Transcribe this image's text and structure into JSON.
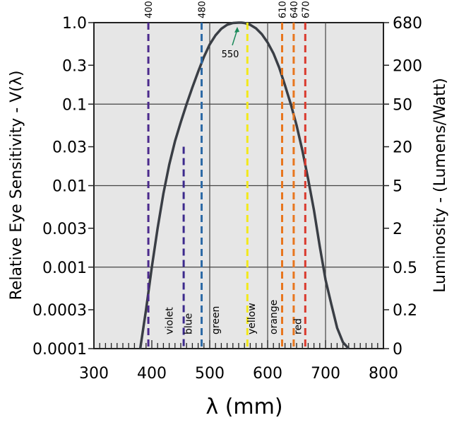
{
  "chart_data": {
    "type": "line",
    "xlabel": "λ (mm)",
    "ylabel_left": "Relative Eye Sensitivity - V(λ)",
    "ylabel_right": "Luminosity - (Lumens/Watt)",
    "xlim": [
      300,
      800
    ],
    "ylim": [
      0.0001,
      1.0
    ],
    "y_scale": "log",
    "grid": true,
    "x_ticks": [
      "300",
      "400",
      "500",
      "600",
      "700",
      "800"
    ],
    "y_ticks_left": [
      {
        "label": "1.0",
        "value": 1.0
      },
      {
        "label": "0.3",
        "value": 0.3
      },
      {
        "label": "0.1",
        "value": 0.1
      },
      {
        "label": "0.03",
        "value": 0.03
      },
      {
        "label": "0.01",
        "value": 0.01
      },
      {
        "label": "0.003",
        "value": 0.003
      },
      {
        "label": "0.001",
        "value": 0.001
      },
      {
        "label": "0.0003",
        "value": 0.0003
      },
      {
        "label": "0.0001",
        "value": 0.0001
      }
    ],
    "y_ticks_right": [
      {
        "label": "680",
        "value": 1.0
      },
      {
        "label": "200",
        "value": 0.3
      },
      {
        "label": "50",
        "value": 0.1
      },
      {
        "label": "20",
        "value": 0.03
      },
      {
        "label": "5",
        "value": 0.01
      },
      {
        "label": "2",
        "value": 0.003
      },
      {
        "label": "0.5",
        "value": 0.001
      },
      {
        "label": "0.2",
        "value": 0.0003
      },
      {
        "label": "0",
        "value": 0.0001
      }
    ],
    "curve": {
      "x": [
        380,
        390,
        400,
        410,
        420,
        430,
        440,
        450,
        460,
        470,
        480,
        490,
        500,
        510,
        520,
        530,
        540,
        550,
        555,
        560,
        570,
        580,
        590,
        600,
        610,
        620,
        630,
        640,
        650,
        660,
        670,
        680,
        690,
        700,
        710,
        720,
        730,
        740
      ],
      "y": [
        0.0001,
        0.0003,
        0.001,
        0.003,
        0.008,
        0.018,
        0.035,
        0.06,
        0.1,
        0.16,
        0.25,
        0.38,
        0.54,
        0.7,
        0.84,
        0.94,
        0.99,
        1.0,
        1.0,
        0.99,
        0.94,
        0.85,
        0.72,
        0.57,
        0.42,
        0.28,
        0.17,
        0.1,
        0.055,
        0.027,
        0.012,
        0.005,
        0.0018,
        0.0007,
        0.00035,
        0.00018,
        0.00012,
        0.0001
      ],
      "color": "#3a3e45"
    },
    "wavelength_lines": [
      {
        "x": 394,
        "top": 1.0,
        "color": "#4b2a8c",
        "label": "400"
      },
      {
        "x": 455,
        "top": 0.03,
        "color": "#3c2a8c",
        "label": ""
      },
      {
        "x": 486,
        "top": 1.0,
        "color": "#2d6aa6",
        "label": "480"
      },
      {
        "x": 565,
        "top": 1.0,
        "color": "#f2e91a",
        "label": ""
      },
      {
        "x": 625,
        "top": 1.0,
        "color": "#e8761e",
        "label": "610"
      },
      {
        "x": 645,
        "top": 1.0,
        "color": "#e8761e",
        "label": "640"
      },
      {
        "x": 665,
        "top": 1.0,
        "color": "#d93a2e",
        "label": "670"
      }
    ],
    "band_labels": [
      {
        "text": "violet",
        "x": 430
      },
      {
        "text": "blue",
        "x": 463
      },
      {
        "text": "green",
        "x": 510
      },
      {
        "text": "yellow",
        "x": 572
      },
      {
        "text": "orange",
        "x": 610
      },
      {
        "text": "red",
        "x": 652
      }
    ],
    "annotation": {
      "text": "550",
      "x": 550,
      "y": 1.0
    }
  }
}
